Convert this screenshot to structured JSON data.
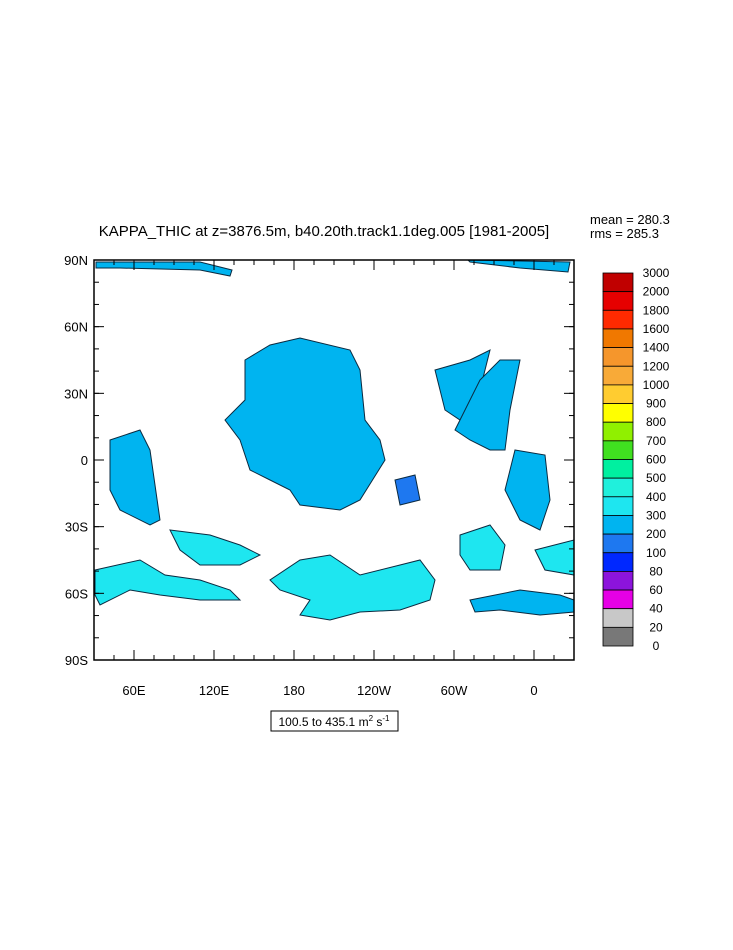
{
  "title": "KAPPA_THIC at z=3876.5m, b40.20th.track1.1deg.005 [1981-2005]",
  "stats": [
    "mean = 280.3",
    "rms = 285.3"
  ],
  "lat_labels": [
    "90N",
    "60N",
    "30N",
    "0",
    "30S",
    "60S",
    "90S"
  ],
  "lon_labels": [
    "60E",
    "120E",
    "180",
    "120W",
    "60W",
    "0"
  ],
  "colorbar": {
    "labels": [
      "3000",
      "2000",
      "1800",
      "1600",
      "1400",
      "1200",
      "1000",
      "900",
      "800",
      "700",
      "600",
      "500",
      "400",
      "300",
      "200",
      "100",
      "80",
      "60",
      "40",
      "20",
      "0"
    ],
    "colors": [
      "#c00000",
      "#e60000",
      "#ff2a00",
      "#f07800",
      "#f5962c",
      "#f8aa38",
      "#ffcc30",
      "#ffff00",
      "#90f000",
      "#40e020",
      "#00f0a0",
      "#20f0dc",
      "#1ee6f0",
      "#00b4f0",
      "#1e78f0",
      "#0028ff",
      "#8c14dc",
      "#e600e6",
      "#c8c8c8",
      "#787878"
    ]
  },
  "range_label": {
    "text": "100.5 to 435.1 m",
    "sup1": "2",
    "mid": " s",
    "sup2": "-1"
  }
}
